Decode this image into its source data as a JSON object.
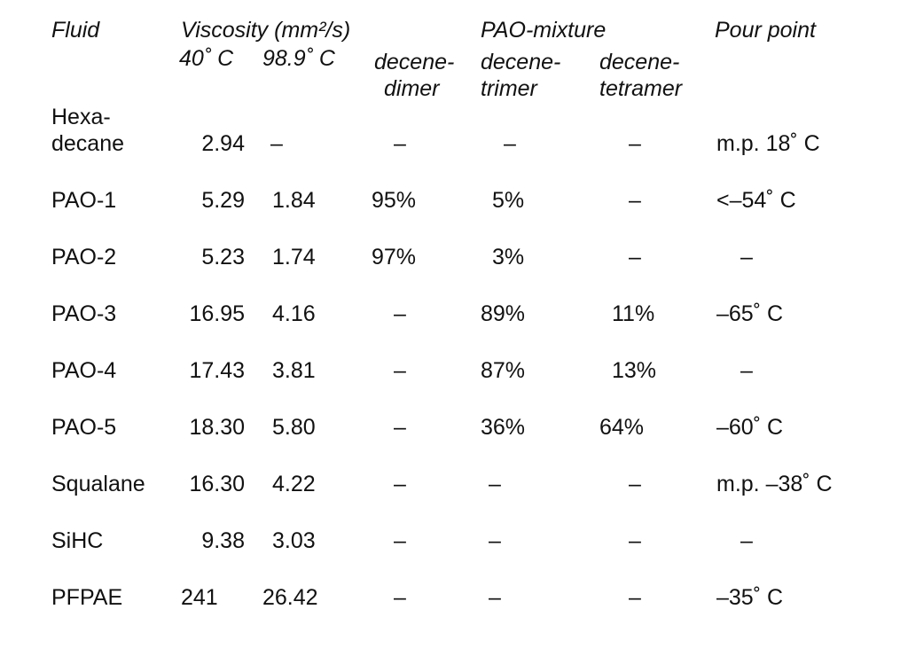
{
  "headers": {
    "fluid": "Fluid",
    "viscosity": "Viscosity (mm²/s)",
    "temp_40": "40˚ C",
    "temp_98": "98.9˚ C",
    "pao_mixture": "PAO-mixture",
    "decene_dimer_1": "decene-",
    "decene_dimer_2": "dimer",
    "decene_trimer_1": "decene-",
    "decene_trimer_2": "trimer",
    "decene_tetramer_1": "decene-",
    "decene_tetramer_2": "tetramer",
    "pour_point": "Pour point"
  },
  "rows": [
    {
      "fluid_line1": "Hexa-",
      "fluid_line2": "decane",
      "v40": "2.94",
      "v98": "–",
      "dimer": "–",
      "trimer": "–",
      "tetramer": "–",
      "pour": "m.p. 18˚ C"
    },
    {
      "fluid": "PAO-1",
      "v40": "5.29",
      "v98": "1.84",
      "dimer": "95%",
      "trimer": "5%",
      "tetramer": "–",
      "pour": "<–54˚ C"
    },
    {
      "fluid": "PAO-2",
      "v40": "5.23",
      "v98": "1.74",
      "dimer": "97%",
      "trimer": "3%",
      "tetramer": "–",
      "pour": "–"
    },
    {
      "fluid": "PAO-3",
      "v40": "16.95",
      "v98": "4.16",
      "dimer": "–",
      "trimer": "89%",
      "tetramer": "11%",
      "pour": "–65˚ C"
    },
    {
      "fluid": "PAO-4",
      "v40": "17.43",
      "v98": "3.81",
      "dimer": "–",
      "trimer": "87%",
      "tetramer": "13%",
      "pour": "–"
    },
    {
      "fluid": "PAO-5",
      "v40": "18.30",
      "v98": "5.80",
      "dimer": "–",
      "trimer": "36%",
      "tetramer": "64%",
      "pour": "–60˚ C"
    },
    {
      "fluid": "Squalane",
      "v40": "16.30",
      "v98": "4.22",
      "dimer": "–",
      "trimer": "–",
      "tetramer": "–",
      "pour": "m.p. –38˚ C"
    },
    {
      "fluid": "SiHC",
      "v40": "9.38",
      "v98": "3.03",
      "dimer": "–",
      "trimer": "–",
      "tetramer": "–",
      "pour": "–"
    },
    {
      "fluid": "PFPAE",
      "v40": "241",
      "v98": "26.42",
      "dimer": "–",
      "trimer": "–",
      "tetramer": "–",
      "pour": "–35˚ C"
    }
  ]
}
